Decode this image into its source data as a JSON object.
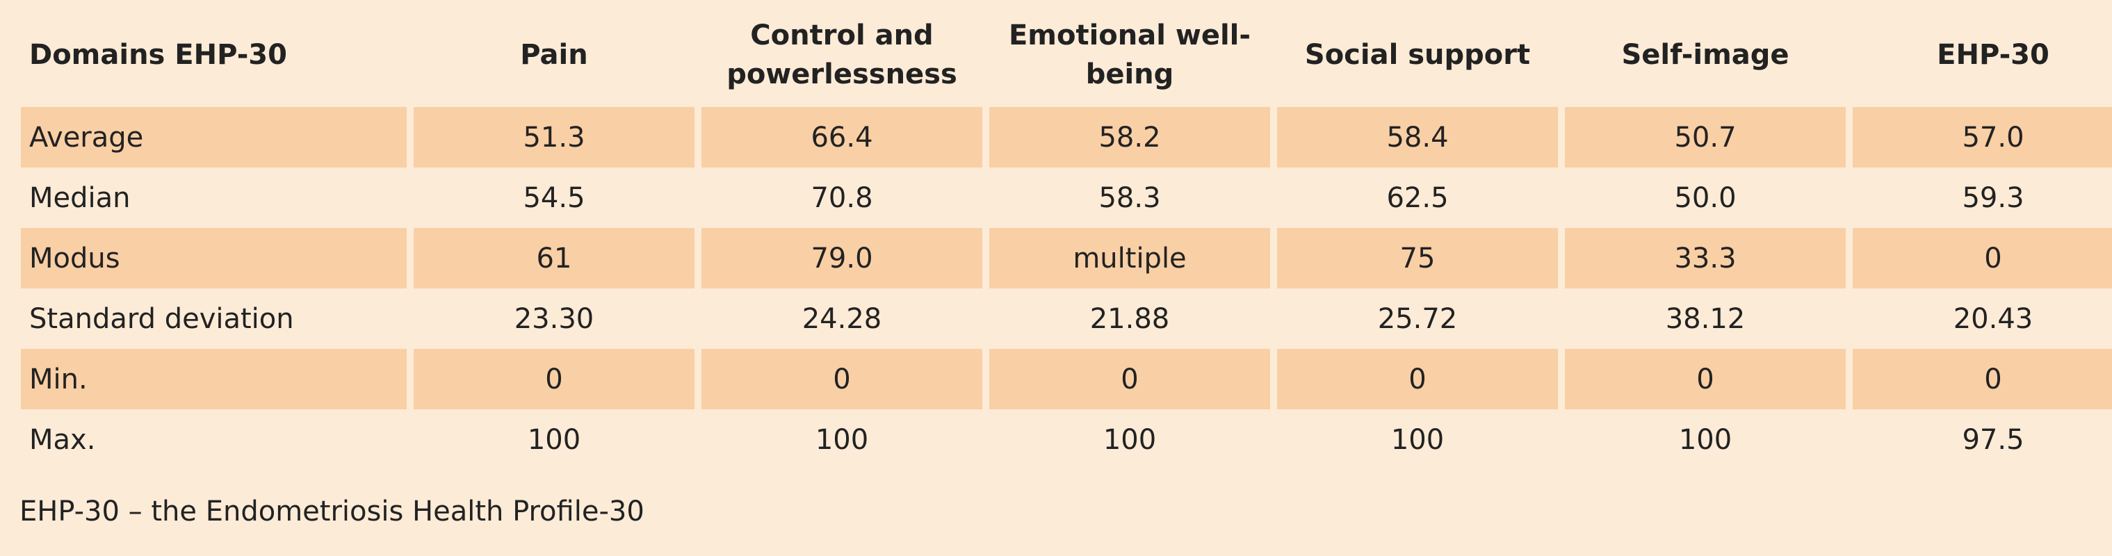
{
  "table": {
    "headers": [
      "Domains EHP-30",
      "Pain",
      "Control and powerlessness",
      "Emotional well-being",
      "Social support",
      "Self-image",
      "EHP-30"
    ],
    "rows": [
      {
        "label": "Average",
        "values": [
          "51.3",
          "66.4",
          "58.2",
          "58.4",
          "50.7",
          "57.0"
        ],
        "shaded": true
      },
      {
        "label": "Median",
        "values": [
          "54.5",
          "70.8",
          "58.3",
          "62.5",
          "50.0",
          "59.3"
        ],
        "shaded": false
      },
      {
        "label": "Modus",
        "values": [
          "61",
          "79.0",
          "multiple",
          "75",
          "33.3",
          "0"
        ],
        "shaded": true
      },
      {
        "label": "Standard deviation",
        "values": [
          "23.30",
          "24.28",
          "21.88",
          "25.72",
          "38.12",
          "20.43"
        ],
        "shaded": false
      },
      {
        "label": "Min.",
        "values": [
          "0",
          "0",
          "0",
          "0",
          "0",
          "0"
        ],
        "shaded": true
      },
      {
        "label": "Max.",
        "values": [
          "100",
          "100",
          "100",
          "100",
          "100",
          "97.5"
        ],
        "shaded": false
      }
    ]
  },
  "footnote": "EHP-30 – the Endometriosis Health Profile-30",
  "colors": {
    "background": "#fcebd7",
    "shaded_row": "#f9cfa5",
    "text": "#222222"
  }
}
